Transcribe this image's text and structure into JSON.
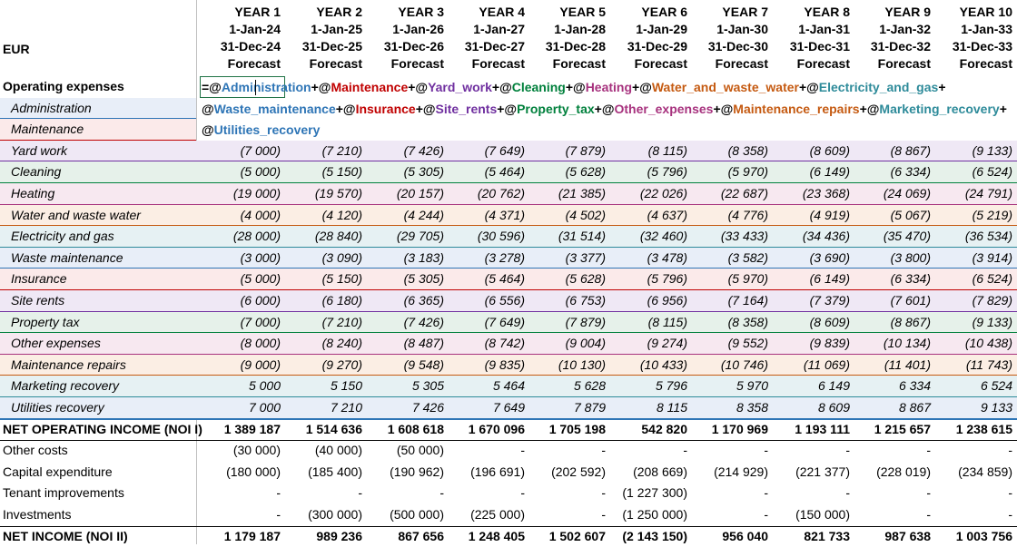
{
  "currency": "EUR",
  "years": [
    {
      "label": "YEAR 1",
      "start": "1-Jan-24",
      "end": "31-Dec-24",
      "type": "Forecast"
    },
    {
      "label": "YEAR 2",
      "start": "1-Jan-25",
      "end": "31-Dec-25",
      "type": "Forecast"
    },
    {
      "label": "YEAR 3",
      "start": "1-Jan-26",
      "end": "31-Dec-26",
      "type": "Forecast"
    },
    {
      "label": "YEAR 4",
      "start": "1-Jan-27",
      "end": "31-Dec-27",
      "type": "Forecast"
    },
    {
      "label": "YEAR 5",
      "start": "1-Jan-28",
      "end": "31-Dec-28",
      "type": "Forecast"
    },
    {
      "label": "YEAR 6",
      "start": "1-Jan-29",
      "end": "31-Dec-29",
      "type": "Forecast"
    },
    {
      "label": "YEAR 7",
      "start": "1-Jan-30",
      "end": "31-Dec-30",
      "type": "Forecast"
    },
    {
      "label": "YEAR 8",
      "start": "1-Jan-31",
      "end": "31-Dec-31",
      "type": "Forecast"
    },
    {
      "label": "YEAR 9",
      "start": "1-Jan-32",
      "end": "31-Dec-32",
      "type": "Forecast"
    },
    {
      "label": "YEAR 10",
      "start": "1-Jan-33",
      "end": "31-Dec-33",
      "type": "Forecast"
    }
  ],
  "opex_label": "Operating expenses",
  "formula_tokens": [
    {
      "t": "=@",
      "c": "#000000"
    },
    {
      "t": "Administration",
      "c": "#2e75b6"
    },
    {
      "t": "+@",
      "c": "#000000"
    },
    {
      "t": "Maintenance",
      "c": "#c00000"
    },
    {
      "t": "+@",
      "c": "#000000"
    },
    {
      "t": "Yard_work",
      "c": "#7030a0"
    },
    {
      "t": "+@",
      "c": "#000000"
    },
    {
      "t": "Cleaning",
      "c": "#00803c"
    },
    {
      "t": "+@",
      "c": "#000000"
    },
    {
      "t": "Heating",
      "c": "#a7327e"
    },
    {
      "t": "+@",
      "c": "#000000"
    },
    {
      "t": "Water_and_waste_water",
      "c": "#c55a11"
    },
    {
      "t": "+@",
      "c": "#000000"
    },
    {
      "t": "Electricity_and_gas",
      "c": "#2e8b9a"
    },
    {
      "t": "+",
      "c": "#000000"
    },
    {
      "t": "@",
      "c": "#000000",
      "br": true
    },
    {
      "t": "Waste_maintenance",
      "c": "#2e75b6"
    },
    {
      "t": "+@",
      "c": "#000000"
    },
    {
      "t": "Insurance",
      "c": "#c00000"
    },
    {
      "t": "+@",
      "c": "#000000"
    },
    {
      "t": "Site_rents",
      "c": "#7030a0"
    },
    {
      "t": "+@",
      "c": "#000000"
    },
    {
      "t": "Property_tax",
      "c": "#00803c"
    },
    {
      "t": "+@",
      "c": "#000000"
    },
    {
      "t": "Other_expenses",
      "c": "#a7327e"
    },
    {
      "t": "+@",
      "c": "#000000"
    },
    {
      "t": "Maintenance_repairs",
      "c": "#c55a11"
    },
    {
      "t": "+@",
      "c": "#000000"
    },
    {
      "t": "Marketing_recovery",
      "c": "#2e8b9a"
    },
    {
      "t": "+",
      "c": "#000000"
    },
    {
      "t": "@",
      "c": "#000000",
      "br": true
    },
    {
      "t": "Utilities_recovery",
      "c": "#2e75b6"
    }
  ],
  "expense_rows": [
    {
      "label": "Administration",
      "band": "#e8eef8",
      "line": "#2e75b6",
      "values": []
    },
    {
      "label": "Maintenance",
      "band": "#fbeaea",
      "line": "#c00000",
      "values": []
    },
    {
      "label": "Yard work",
      "band": "#efe8f5",
      "line": "#7030a0",
      "values": [
        "(7 000)",
        "(7 210)",
        "(7 426)",
        "(7 649)",
        "(7 879)",
        "(8 115)",
        "(8 358)",
        "(8 609)",
        "(8 867)",
        "(9 133)"
      ]
    },
    {
      "label": "Cleaning",
      "band": "#e6f1ea",
      "line": "#00803c",
      "values": [
        "(5 000)",
        "(5 150)",
        "(5 305)",
        "(5 464)",
        "(5 628)",
        "(5 796)",
        "(5 970)",
        "(6 149)",
        "(6 334)",
        "(6 524)"
      ]
    },
    {
      "label": "Heating",
      "band": "#f7e8f0",
      "line": "#a7327e",
      "values": [
        "(19 000)",
        "(19 570)",
        "(20 157)",
        "(20 762)",
        "(21 385)",
        "(22 026)",
        "(22 687)",
        "(23 368)",
        "(24 069)",
        "(24 791)"
      ]
    },
    {
      "label": "Water and waste water",
      "band": "#fbeee4",
      "line": "#c55a11",
      "values": [
        "(4 000)",
        "(4 120)",
        "(4 244)",
        "(4 371)",
        "(4 502)",
        "(4 637)",
        "(4 776)",
        "(4 919)",
        "(5 067)",
        "(5 219)"
      ]
    },
    {
      "label": "Electricity and gas",
      "band": "#e6f1f3",
      "line": "#2e8b9a",
      "values": [
        "(28 000)",
        "(28 840)",
        "(29 705)",
        "(30 596)",
        "(31 514)",
        "(32 460)",
        "(33 433)",
        "(34 436)",
        "(35 470)",
        "(36 534)"
      ]
    },
    {
      "label": "Waste maintenance",
      "band": "#e8eef8",
      "line": "#2e75b6",
      "values": [
        "(3 000)",
        "(3 090)",
        "(3 183)",
        "(3 278)",
        "(3 377)",
        "(3 478)",
        "(3 582)",
        "(3 690)",
        "(3 800)",
        "(3 914)"
      ]
    },
    {
      "label": "Insurance",
      "band": "#fbeaea",
      "line": "#c00000",
      "values": [
        "(5 000)",
        "(5 150)",
        "(5 305)",
        "(5 464)",
        "(5 628)",
        "(5 796)",
        "(5 970)",
        "(6 149)",
        "(6 334)",
        "(6 524)"
      ]
    },
    {
      "label": "Site rents",
      "band": "#efe8f5",
      "line": "#7030a0",
      "values": [
        "(6 000)",
        "(6 180)",
        "(6 365)",
        "(6 556)",
        "(6 753)",
        "(6 956)",
        "(7 164)",
        "(7 379)",
        "(7 601)",
        "(7 829)"
      ]
    },
    {
      "label": "Property tax",
      "band": "#e6f1ea",
      "line": "#00803c",
      "values": [
        "(7 000)",
        "(7 210)",
        "(7 426)",
        "(7 649)",
        "(7 879)",
        "(8 115)",
        "(8 358)",
        "(8 609)",
        "(8 867)",
        "(9 133)"
      ]
    },
    {
      "label": "Other expenses",
      "band": "#f7e8f0",
      "line": "#a7327e",
      "values": [
        "(8 000)",
        "(8 240)",
        "(8 487)",
        "(8 742)",
        "(9 004)",
        "(9 274)",
        "(9 552)",
        "(9 839)",
        "(10 134)",
        "(10 438)"
      ]
    },
    {
      "label": "Maintenance repairs",
      "band": "#fbeee4",
      "line": "#c55a11",
      "values": [
        "(9 000)",
        "(9 270)",
        "(9 548)",
        "(9 835)",
        "(10 130)",
        "(10 433)",
        "(10 746)",
        "(11 069)",
        "(11 401)",
        "(11 743)"
      ]
    },
    {
      "label": "Marketing recovery",
      "band": "#e6f1f3",
      "line": "#2e8b9a",
      "values": [
        "5 000",
        "5 150",
        "5 305",
        "5 464",
        "5 628",
        "5 796",
        "5 970",
        "6 149",
        "6 334",
        "6 524"
      ]
    },
    {
      "label": "Utilities recovery",
      "band": "#e8eef8",
      "line": "#2e75b6",
      "values": [
        "7 000",
        "7 210",
        "7 426",
        "7 649",
        "7 879",
        "8 115",
        "8 358",
        "8 609",
        "8 867",
        "9 133"
      ]
    }
  ],
  "bottom_rows": [
    {
      "label": "NET OPERATING INCOME (NOI I)",
      "bold": true,
      "values": [
        "1 389 187",
        "1 514 636",
        "1 608 618",
        "1 670 096",
        "1 705 198",
        "542 820",
        "1 170 969",
        "1 193 111",
        "1 215 657",
        "1 238 615"
      ]
    },
    {
      "label": "Other costs",
      "bold": false,
      "values": [
        "(30 000)",
        "(40 000)",
        "(50 000)",
        "-",
        "-",
        "-",
        "-",
        "-",
        "-",
        "-"
      ]
    },
    {
      "label": "Capital expenditure",
      "bold": false,
      "values": [
        "(180 000)",
        "(185 400)",
        "(190 962)",
        "(196 691)",
        "(202 592)",
        "(208 669)",
        "(214 929)",
        "(221 377)",
        "(228 019)",
        "(234 859)"
      ]
    },
    {
      "label": "Tenant improvements",
      "bold": false,
      "values": [
        "-",
        "-",
        "-",
        "-",
        "-",
        "(1 227 300)",
        "-",
        "-",
        "-",
        "-"
      ]
    },
    {
      "label": "Investments",
      "bold": false,
      "values": [
        "-",
        "(300 000)",
        "(500 000)",
        "(225 000)",
        "-",
        "(1 250 000)",
        "-",
        "(150 000)",
        "-",
        "-"
      ]
    },
    {
      "label": "NET INCOME (NOI II)",
      "bold": true,
      "values": [
        "1 179 187",
        "989 236",
        "867 656",
        "1 248 405",
        "1 502 607",
        "(2 143 150)",
        "956 040",
        "821 733",
        "987 638",
        "1 003 756"
      ]
    }
  ]
}
